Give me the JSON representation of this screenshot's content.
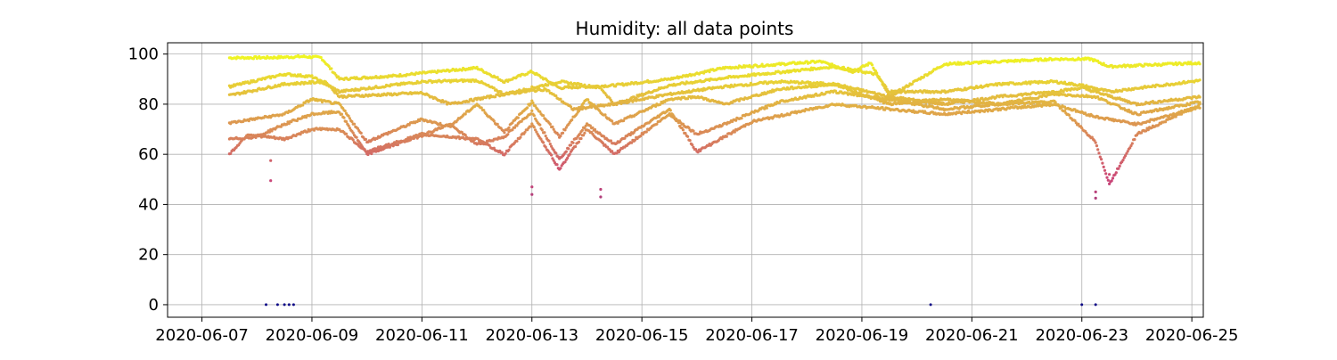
{
  "chart_data": {
    "type": "scatter",
    "title": "Humidity: all data points",
    "xlabel": "",
    "ylabel": "",
    "x_is_date": true,
    "xlim": [
      "2020-06-06T09:00",
      "2020-06-25T05:00"
    ],
    "ylim": [
      -5,
      104.5
    ],
    "x_ticks": [
      "2020-06-07",
      "2020-06-09",
      "2020-06-11",
      "2020-06-13",
      "2020-06-15",
      "2020-06-17",
      "2020-06-19",
      "2020-06-21",
      "2020-06-23",
      "2020-06-25"
    ],
    "y_ticks": [
      0,
      20,
      40,
      60,
      80,
      100
    ],
    "grid": true,
    "legend": false,
    "color_scale": [
      "#0d0887",
      "#cc4778",
      "#f0f921"
    ],
    "color_range": [
      0,
      100
    ],
    "series": [
      {
        "values": [
          [
            "2020-06-07T12:00",
            98.5
          ],
          [
            "2020-06-08T06:00",
            98.6
          ],
          [
            "2020-06-08T20:00",
            99.0
          ],
          [
            "2020-06-09T04:00",
            98.6
          ],
          [
            "2020-06-09T12:00",
            90.0
          ],
          [
            "2020-06-10T12:00",
            91.3
          ],
          [
            "2020-06-12T00:00",
            94.5
          ],
          [
            "2020-06-12T12:00",
            89.0
          ],
          [
            "2020-06-13T00:00",
            93.0
          ],
          [
            "2020-06-13T12:00",
            86.5
          ],
          [
            "2020-06-14T12:00",
            87.5
          ],
          [
            "2020-06-15T12:00",
            90.0
          ],
          [
            "2020-06-16T12:00",
            94.5
          ],
          [
            "2020-06-18T06:00",
            97.0
          ],
          [
            "2020-06-18T20:00",
            93.0
          ],
          [
            "2020-06-19T04:00",
            96.5
          ],
          [
            "2020-06-19T12:00",
            83.0
          ],
          [
            "2020-06-20T12:00",
            96.0
          ],
          [
            "2020-06-22T12:00",
            98.0
          ],
          [
            "2020-06-23T04:00",
            98.0
          ],
          [
            "2020-06-23T12:00",
            95.0
          ],
          [
            "2020-06-25T04:00",
            96.5
          ]
        ]
      },
      {
        "values": [
          [
            "2020-06-07T12:00",
            87.0
          ],
          [
            "2020-06-08T12:00",
            92.0
          ],
          [
            "2020-06-09T00:00",
            91.0
          ],
          [
            "2020-06-09T12:00",
            85.0
          ],
          [
            "2020-06-11T00:00",
            89.0
          ],
          [
            "2020-06-12T00:00",
            89.5
          ],
          [
            "2020-06-12T12:00",
            84.0
          ],
          [
            "2020-06-13T12:00",
            89.0
          ],
          [
            "2020-06-14T06:00",
            86.5
          ],
          [
            "2020-06-14T12:00",
            80.0
          ],
          [
            "2020-06-15T12:00",
            87.5
          ],
          [
            "2020-06-16T12:00",
            90.5
          ],
          [
            "2020-06-18T12:00",
            95.0
          ],
          [
            "2020-06-19T06:00",
            92.0
          ],
          [
            "2020-06-19T12:00",
            85.0
          ],
          [
            "2020-06-20T12:00",
            85.0
          ],
          [
            "2020-06-21T12:00",
            88.0
          ],
          [
            "2020-06-22T12:00",
            89.0
          ],
          [
            "2020-06-23T00:00",
            87.5
          ],
          [
            "2020-06-23T12:00",
            85.0
          ],
          [
            "2020-06-25T04:00",
            89.5
          ]
        ]
      },
      {
        "values": [
          [
            "2020-06-07T12:00",
            83.5
          ],
          [
            "2020-06-08T12:00",
            88.0
          ],
          [
            "2020-06-09T06:00",
            89.0
          ],
          [
            "2020-06-09T12:00",
            83.0
          ],
          [
            "2020-06-11T00:00",
            84.5
          ],
          [
            "2020-06-11T12:00",
            80.0
          ],
          [
            "2020-06-12T12:00",
            84.0
          ],
          [
            "2020-06-13T06:00",
            86.0
          ],
          [
            "2020-06-13T18:00",
            78.0
          ],
          [
            "2020-06-14T12:00",
            80.0
          ],
          [
            "2020-06-15T12:00",
            84.0
          ],
          [
            "2020-06-16T12:00",
            87.0
          ],
          [
            "2020-06-17T12:00",
            89.0
          ],
          [
            "2020-06-18T12:00",
            88.0
          ],
          [
            "2020-06-19T12:00",
            83.0
          ],
          [
            "2020-06-20T12:00",
            80.0
          ],
          [
            "2020-06-21T12:00",
            83.0
          ],
          [
            "2020-06-22T12:00",
            85.0
          ],
          [
            "2020-06-23T00:00",
            86.5
          ],
          [
            "2020-06-24T00:00",
            80.0
          ],
          [
            "2020-06-25T04:00",
            83.0
          ]
        ]
      },
      {
        "values": [
          [
            "2020-06-07T12:00",
            72.5
          ],
          [
            "2020-06-08T12:00",
            76.0
          ],
          [
            "2020-06-09T00:00",
            82.0
          ],
          [
            "2020-06-09T12:00",
            80.0
          ],
          [
            "2020-06-10T00:00",
            65.0
          ],
          [
            "2020-06-11T00:00",
            74.0
          ],
          [
            "2020-06-11T12:00",
            71.0
          ],
          [
            "2020-06-12T00:00",
            80.0
          ],
          [
            "2020-06-12T12:00",
            69.0
          ],
          [
            "2020-06-13T00:00",
            81.0
          ],
          [
            "2020-06-13T12:00",
            67.0
          ],
          [
            "2020-06-14T00:00",
            82.0
          ],
          [
            "2020-06-14T12:00",
            72.0
          ],
          [
            "2020-06-15T12:00",
            82.0
          ],
          [
            "2020-06-16T00:00",
            83.0
          ],
          [
            "2020-06-16T12:00",
            80.0
          ],
          [
            "2020-06-17T12:00",
            86.0
          ],
          [
            "2020-06-18T12:00",
            88.0
          ],
          [
            "2020-06-19T12:00",
            80.0
          ],
          [
            "2020-06-20T12:00",
            82.0
          ],
          [
            "2020-06-21T12:00",
            80.0
          ],
          [
            "2020-06-22T12:00",
            84.0
          ],
          [
            "2020-06-23T06:00",
            83.0
          ],
          [
            "2020-06-24T00:00",
            76.0
          ],
          [
            "2020-06-25T04:00",
            81.0
          ]
        ]
      },
      {
        "values": [
          [
            "2020-06-07T12:00",
            66.0
          ],
          [
            "2020-06-08T00:00",
            67.0
          ],
          [
            "2020-06-08T12:00",
            72.0
          ],
          [
            "2020-06-09T00:00",
            76.0
          ],
          [
            "2020-06-09T12:00",
            77.0
          ],
          [
            "2020-06-10T00:00",
            60.0
          ],
          [
            "2020-06-11T00:00",
            67.5
          ],
          [
            "2020-06-11T12:00",
            72.0
          ],
          [
            "2020-06-12T00:00",
            64.0
          ],
          [
            "2020-06-12T12:00",
            67.0
          ],
          [
            "2020-06-13T00:00",
            77.0
          ],
          [
            "2020-06-13T12:00",
            58.0
          ],
          [
            "2020-06-14T00:00",
            72.0
          ],
          [
            "2020-06-14T12:00",
            64.0
          ],
          [
            "2020-06-15T12:00",
            78.0
          ],
          [
            "2020-06-16T00:00",
            61.0
          ],
          [
            "2020-06-16T12:00",
            67.0
          ],
          [
            "2020-06-17T00:00",
            73.0
          ],
          [
            "2020-06-18T12:00",
            80.0
          ],
          [
            "2020-06-19T12:00",
            78.0
          ],
          [
            "2020-06-20T12:00",
            76.0
          ],
          [
            "2020-06-21T12:00",
            78.0
          ],
          [
            "2020-06-22T12:00",
            80.0
          ],
          [
            "2020-06-23T06:00",
            75.0
          ],
          [
            "2020-06-24T00:00",
            72.0
          ],
          [
            "2020-06-25T04:00",
            79.0
          ]
        ]
      },
      {
        "values": [
          [
            "2020-06-07T12:00",
            60.0
          ],
          [
            "2020-06-07T20:00",
            68.0
          ],
          [
            "2020-06-08T12:00",
            66.0
          ],
          [
            "2020-06-09T00:00",
            70.0
          ],
          [
            "2020-06-09T12:00",
            70.0
          ],
          [
            "2020-06-10T00:00",
            61.0
          ],
          [
            "2020-06-11T00:00",
            68.0
          ],
          [
            "2020-06-12T00:00",
            66.0
          ],
          [
            "2020-06-12T12:00",
            60.0
          ],
          [
            "2020-06-13T00:00",
            72.0
          ],
          [
            "2020-06-13T12:00",
            54.0
          ],
          [
            "2020-06-14T00:00",
            70.0
          ],
          [
            "2020-06-14T12:00",
            60.0
          ],
          [
            "2020-06-15T12:00",
            76.0
          ],
          [
            "2020-06-16T00:00",
            68.0
          ],
          [
            "2020-06-16T12:00",
            72.0
          ],
          [
            "2020-06-17T12:00",
            81.0
          ],
          [
            "2020-06-18T12:00",
            85.0
          ],
          [
            "2020-06-19T12:00",
            82.0
          ],
          [
            "2020-06-20T12:00",
            78.0
          ],
          [
            "2020-06-21T12:00",
            80.0
          ],
          [
            "2020-06-22T12:00",
            81.0
          ],
          [
            "2020-06-23T06:00",
            65.0
          ],
          [
            "2020-06-23T12:00",
            48.0
          ],
          [
            "2020-06-24T00:00",
            68.0
          ],
          [
            "2020-06-25T04:00",
            80.0
          ]
        ]
      }
    ],
    "outliers": [
      [
        "2020-06-08T06:00",
        49.5
      ],
      [
        "2020-06-08T06:00",
        57.5
      ],
      [
        "2020-06-13T00:00",
        47.0
      ],
      [
        "2020-06-13T00:00",
        44.0
      ],
      [
        "2020-06-14T06:00",
        43.0
      ],
      [
        "2020-06-14T06:00",
        46.0
      ],
      [
        "2020-06-23T06:00",
        42.5
      ],
      [
        "2020-06-23T06:00",
        45.0
      ],
      [
        "2020-06-23T12:00",
        52.0
      ]
    ],
    "zero_points": [
      [
        "2020-06-08T04:00",
        0
      ],
      [
        "2020-06-08T09:00",
        0
      ],
      [
        "2020-06-08T12:00",
        0
      ],
      [
        "2020-06-08T14:00",
        0
      ],
      [
        "2020-06-08T16:00",
        0
      ],
      [
        "2020-06-20T06:00",
        0
      ],
      [
        "2020-06-23T00:00",
        0
      ],
      [
        "2020-06-23T06:00",
        0
      ]
    ]
  }
}
